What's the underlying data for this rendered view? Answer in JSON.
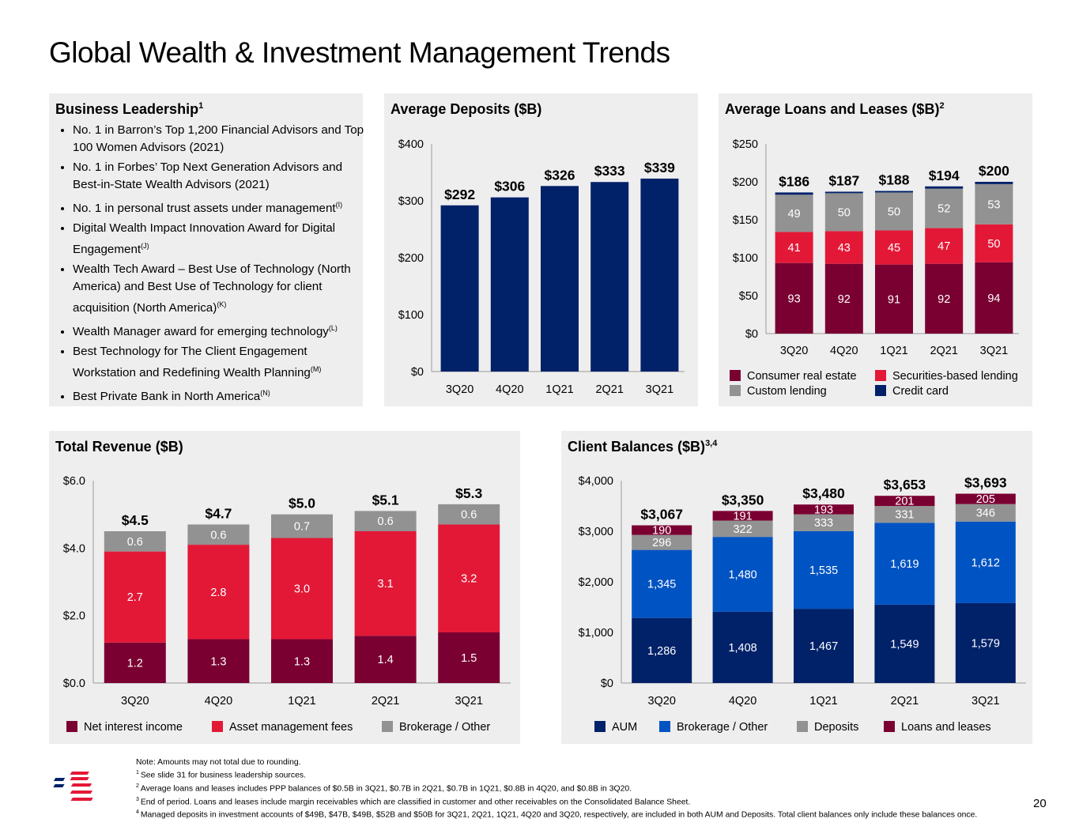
{
  "page": {
    "title": "Global Wealth & Investment Management Trends",
    "page_number": "20"
  },
  "leadership": {
    "title": "Business Leadership",
    "title_sup": "1",
    "items": [
      {
        "text": "No. 1 in Barron’s Top 1,200 Financial Advisors and Top 100 Women Advisors (2021)",
        "sup": ""
      },
      {
        "text": "No. 1 in Forbes’ Top Next Generation Advisors and Best-in-State Wealth Advisors (2021)",
        "sup": ""
      },
      {
        "text": "No. 1 in personal trust assets under management",
        "sup": "(I)"
      },
      {
        "text": "Digital Wealth Impact Innovation Award for Digital Engagement",
        "sup": "(J)"
      },
      {
        "text": "Wealth Tech Award – Best Use of Technology (North America) and Best Use of Technology for client acquisition (North America)",
        "sup": "(K)"
      },
      {
        "text": "Wealth Manager award for emerging technology",
        "sup": "(L)"
      },
      {
        "text": "Best Technology for The Client Engagement Workstation and Redefining Wealth Planning",
        "sup": "(M)"
      },
      {
        "text": "Best Private Bank in North America",
        "sup": "(N)"
      }
    ]
  },
  "colors": {
    "navy": "#012169",
    "bright_blue": "#0053c2",
    "maroon": "#7a0032",
    "red": "#e31837",
    "gray": "#929292",
    "panel_bg": "#eeeeee"
  },
  "footnotes": {
    "note": "Note: Amounts may not total due to rounding.",
    "items": [
      {
        "sup": "1",
        "text": "See slide 31 for business leadership sources."
      },
      {
        "sup": "2",
        "text": "Average loans and leases includes PPP balances of $0.5B in 3Q21, $0.7B in 2Q21, $0.7B in 1Q21, $0.8B in 4Q20, and $0.8B in 3Q20."
      },
      {
        "sup": "3",
        "text": "End of period. Loans and leases include margin receivables which are classified in customer and other receivables on the Consolidated Balance Sheet."
      },
      {
        "sup": "4",
        "text": "Managed deposits in investment accounts of $49B, $47B, $49B, $52B and $50B for 3Q21, 2Q21, 1Q21, 4Q20 and 3Q20, respectively, are included in both AUM and Deposits. Total client balances only include these balances once."
      }
    ]
  },
  "chart_data": [
    {
      "id": "deposits",
      "type": "bar",
      "title": "Average Deposits ($B)",
      "title_sup": "",
      "categories": [
        "3Q20",
        "4Q20",
        "1Q21",
        "2Q21",
        "3Q21"
      ],
      "values": [
        292,
        306,
        326,
        333,
        339
      ],
      "total_labels": [
        "$292",
        "$306",
        "$326",
        "$333",
        "$339"
      ],
      "ylim": [
        0,
        400
      ],
      "yticks": [
        0,
        100,
        200,
        300,
        400
      ],
      "ytick_labels": [
        "$0",
        "$100",
        "$200",
        "$300",
        "$400"
      ],
      "series_colors": [
        "#012169"
      ],
      "grid": false,
      "legend": "none"
    },
    {
      "id": "loans",
      "type": "bar",
      "stacked": true,
      "title": "Average Loans and Leases ($B)",
      "title_sup": "2",
      "categories": [
        "3Q20",
        "4Q20",
        "1Q21",
        "2Q21",
        "3Q21"
      ],
      "series": [
        {
          "name": "Consumer real estate",
          "color": "#7a0032",
          "values": [
            93,
            92,
            91,
            92,
            94
          ],
          "show_labels": true
        },
        {
          "name": "Securities-based lending",
          "color": "#e31837",
          "values": [
            41,
            43,
            45,
            47,
            50
          ],
          "show_labels": true
        },
        {
          "name": "Custom lending",
          "color": "#929292",
          "values": [
            49,
            50,
            50,
            52,
            53
          ],
          "show_labels": true
        },
        {
          "name": "Credit card",
          "color": "#012169",
          "values": [
            3,
            2,
            2,
            3,
            3
          ],
          "show_labels": false
        }
      ],
      "totals": [
        186,
        187,
        188,
        194,
        200
      ],
      "total_labels": [
        "$186",
        "$187",
        "$188",
        "$194",
        "$200"
      ],
      "ylim": [
        0,
        250
      ],
      "yticks": [
        0,
        50,
        100,
        150,
        200,
        250
      ],
      "ytick_labels": [
        "$0",
        "$50",
        "$100",
        "$150",
        "$200",
        "$250"
      ],
      "legend_order": [
        "Consumer real estate",
        "Securities-based lending",
        "Custom lending",
        "Credit card"
      ],
      "legend": "bottom",
      "grid": false
    },
    {
      "id": "revenue",
      "type": "bar",
      "stacked": true,
      "title": "Total Revenue ($B)",
      "title_sup": "",
      "categories": [
        "3Q20",
        "4Q20",
        "1Q21",
        "2Q21",
        "3Q21"
      ],
      "series": [
        {
          "name": "Net interest income",
          "color": "#7a0032",
          "values": [
            1.2,
            1.3,
            1.3,
            1.4,
            1.5
          ],
          "labels": [
            "1.2",
            "1.3",
            "1.3",
            "1.4",
            "1.5"
          ],
          "show_labels": true
        },
        {
          "name": "Asset management fees",
          "color": "#e31837",
          "values": [
            2.7,
            2.8,
            3.0,
            3.1,
            3.2
          ],
          "labels": [
            "2.7",
            "2.8",
            "3.0",
            "3.1",
            "3.2"
          ],
          "show_labels": true
        },
        {
          "name": "Brokerage / Other",
          "color": "#929292",
          "values": [
            0.6,
            0.6,
            0.7,
            0.6,
            0.6
          ],
          "labels": [
            "0.6",
            "0.6",
            "0.7",
            "0.6",
            "0.6"
          ],
          "show_labels": true
        }
      ],
      "totals": [
        4.5,
        4.7,
        5.0,
        5.1,
        5.3
      ],
      "total_labels": [
        "$4.5",
        "$4.7",
        "$5.0",
        "$5.1",
        "$5.3"
      ],
      "ylim": [
        0,
        6
      ],
      "yticks": [
        0,
        2,
        4,
        6
      ],
      "ytick_labels": [
        "$0.0",
        "$2.0",
        "$4.0",
        "$6.0"
      ],
      "legend": "bottom",
      "grid": false
    },
    {
      "id": "client_balances",
      "type": "bar",
      "stacked": true,
      "title": "Client Balances ($B)",
      "title_sup": "3,4",
      "categories": [
        "3Q20",
        "4Q20",
        "1Q21",
        "2Q21",
        "3Q21"
      ],
      "series": [
        {
          "name": "AUM",
          "color": "#012169",
          "values": [
            1286,
            1408,
            1467,
            1549,
            1579
          ],
          "labels": [
            "1,286",
            "1,408",
            "1,467",
            "1,549",
            "1,579"
          ],
          "show_labels": true
        },
        {
          "name": "Brokerage / Other",
          "color": "#0053c2",
          "values": [
            1345,
            1480,
            1535,
            1619,
            1612
          ],
          "labels": [
            "1,345",
            "1,480",
            "1,535",
            "1,619",
            "1,612"
          ],
          "show_labels": true
        },
        {
          "name": "Deposits",
          "color": "#929292",
          "values": [
            296,
            322,
            333,
            331,
            346
          ],
          "labels": [
            "296",
            "322",
            "333",
            "331",
            "346"
          ],
          "show_labels": true
        },
        {
          "name": "Loans and leases",
          "color": "#7a0032",
          "values": [
            190,
            191,
            193,
            201,
            205
          ],
          "labels": [
            "190",
            "191",
            "193",
            "201",
            "205"
          ],
          "show_labels": true
        }
      ],
      "totals": [
        3067,
        3350,
        3480,
        3653,
        3693
      ],
      "total_labels": [
        "$3,067",
        "$3,350",
        "$3,480",
        "$3,653",
        "$3,693"
      ],
      "ylim": [
        0,
        4000
      ],
      "yticks": [
        0,
        1000,
        2000,
        3000,
        4000
      ],
      "ytick_labels": [
        "$0",
        "$1,000",
        "$2,000",
        "$3,000",
        "$4,000"
      ],
      "legend": "bottom",
      "grid": false
    }
  ]
}
